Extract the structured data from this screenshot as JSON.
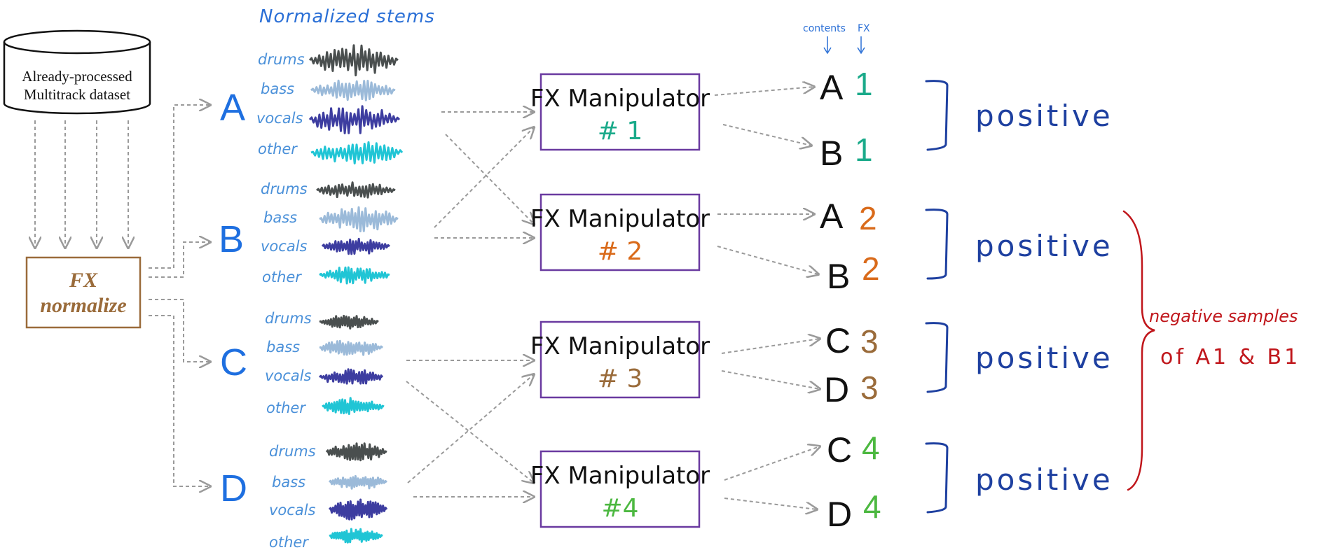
{
  "dataset": {
    "line1": "Already-processed",
    "line2": "Multitrack dataset"
  },
  "normalize": {
    "line1": "FX",
    "line2": "normalize"
  },
  "stems_header": "Normalized stems",
  "column_headers": {
    "contents": "contents",
    "fx": "FX"
  },
  "groups": [
    {
      "letter": "A",
      "stems": [
        "drums",
        "bass",
        "vocals",
        "other"
      ]
    },
    {
      "letter": "B",
      "stems": [
        "drums",
        "bass",
        "vocals",
        "other"
      ]
    },
    {
      "letter": "C",
      "stems": [
        "drums",
        "bass",
        "vocals",
        "other"
      ]
    },
    {
      "letter": "D",
      "stems": [
        "drums",
        "bass",
        "vocals",
        "other"
      ]
    }
  ],
  "manipulators": [
    {
      "title": "FX Manipulator",
      "number": "# 1",
      "color": "#1aaa8a"
    },
    {
      "title": "FX Manipulator",
      "number": "# 2",
      "color": "#d96a1a"
    },
    {
      "title": "FX Manipulator",
      "number": "# 3",
      "color": "#9a6b3a"
    },
    {
      "title": "FX Manipulator",
      "number": "#4",
      "color": "#4cb840"
    }
  ],
  "results": [
    {
      "content": "A",
      "fx": "1",
      "color": "#1aaa8a"
    },
    {
      "content": "B",
      "fx": "1",
      "color": "#1aaa8a"
    },
    {
      "content": "A",
      "fx": "2",
      "color": "#d96a1a"
    },
    {
      "content": "B",
      "fx": "2",
      "color": "#d96a1a"
    },
    {
      "content": "C",
      "fx": "3",
      "color": "#9a6b3a"
    },
    {
      "content": "D",
      "fx": "3",
      "color": "#9a6b3a"
    },
    {
      "content": "C",
      "fx": "4",
      "color": "#4cb840"
    },
    {
      "content": "D",
      "fx": "4",
      "color": "#4cb840"
    }
  ],
  "positive_label": "positive",
  "negative": {
    "line1": "negative samples",
    "line2": "of  A1 & B1"
  },
  "colors": {
    "letters": "#1e6fe0",
    "stem_label": "#4a90d9",
    "box_border": "#6a3aa0",
    "normalize_border": "#9a6b3a",
    "bracket_blue": "#1e40a0",
    "bracket_red": "#c0161b",
    "arrow": "#9a9a9a"
  },
  "stem_wave_colors": [
    "#4a4f4f",
    "#9bbad9",
    "#3d3da0",
    "#20c5d5"
  ]
}
